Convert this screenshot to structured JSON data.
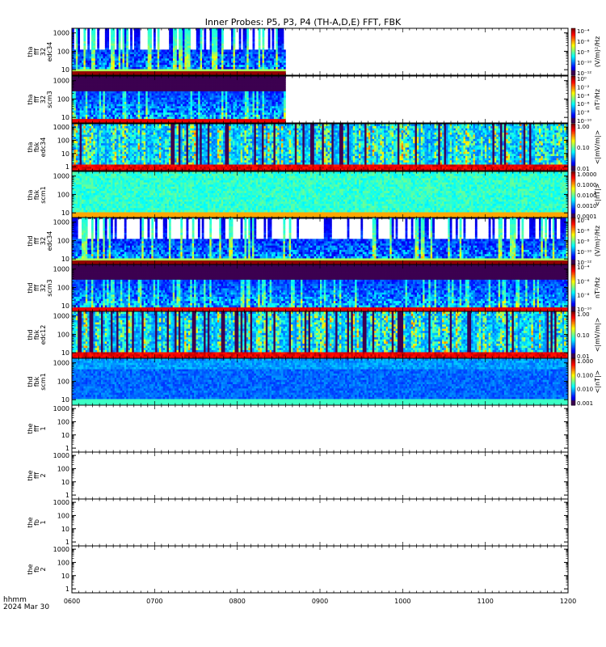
{
  "title": "Inner Probes: P5, P3, P4 (TH-A,D,E) FFT, FBK",
  "footer": {
    "line1": "hhmm",
    "line2": "2024 Mar 30"
  },
  "chart_data": {
    "type": "heatmap",
    "title": "Inner Probes: P5, P3, P4 (TH-A,D,E) FFT, FBK",
    "x_ticks": [
      "0600",
      "0700",
      "0800",
      "0900",
      "1000",
      "1100",
      "1200"
    ],
    "x_range": [
      "06:00",
      "12:00"
    ],
    "y_scale": "log",
    "y_ticks": [
      "1",
      "10",
      "100",
      "1000"
    ],
    "panels": [
      {
        "ylabel": [
          "tha",
          "fff",
          "32",
          "edc34"
        ],
        "y_ticks": [
          "10",
          "100",
          "1000"
        ],
        "cbar_unit": "(V/m)²/Hz",
        "cbar_ticks": [
          "10⁻⁴",
          "10⁻⁶",
          "10⁻⁸",
          "10⁻¹⁰",
          "10⁻¹²"
        ],
        "data_until": "08:35",
        "style": "efield"
      },
      {
        "ylabel": [
          "tha",
          "fff",
          "32",
          "scm3"
        ],
        "y_ticks": [
          "10",
          "100",
          "1000"
        ],
        "cbar_unit": "nT²/Hz",
        "cbar_ticks": [
          "10⁰",
          "10⁻²",
          "10⁻⁴",
          "10⁻⁶",
          "10⁻⁸",
          "10⁻¹⁰"
        ],
        "data_until": "08:35",
        "style": "scm"
      },
      {
        "ylabel": [
          "tha",
          "fbk",
          "edc34"
        ],
        "y_ticks": [
          "1",
          "10",
          "100",
          "1000"
        ],
        "cbar_unit": "<|mV/m|>",
        "cbar_ticks": [
          "1.00",
          "0.10",
          "0.01"
        ],
        "data_until": "12:00",
        "style": "fbk"
      },
      {
        "ylabel": [
          "tha",
          "fbk",
          "scm1"
        ],
        "y_ticks": [
          "10",
          "100",
          "1000"
        ],
        "cbar_unit": "<|nT|>",
        "cbar_ticks": [
          "1.0000",
          "0.1000",
          "0.0100",
          "0.0010",
          "0.0001"
        ],
        "data_until": "12:00",
        "style": "fbkscm"
      },
      {
        "ylabel": [
          "thd",
          "fff",
          "32",
          "edc34"
        ],
        "y_ticks": [
          "10",
          "100",
          "1000"
        ],
        "cbar_unit": "(V/m)²/Hz",
        "cbar_ticks": [
          "10⁻⁴",
          "10⁻⁶",
          "10⁻⁸",
          "10⁻¹⁰",
          "10⁻¹²"
        ],
        "data_until": "12:00",
        "style": "efield"
      },
      {
        "ylabel": [
          "thd",
          "fff",
          "32",
          "scm3"
        ],
        "y_ticks": [
          "10",
          "100",
          "1000"
        ],
        "cbar_unit": "nT²/Hz",
        "cbar_ticks": [
          "10⁻⁴",
          "10⁻⁶",
          "10⁻⁸",
          "10⁻¹⁰"
        ],
        "data_until": "12:00",
        "style": "scm"
      },
      {
        "ylabel": [
          "thd",
          "fbk",
          "edc12"
        ],
        "y_ticks": [
          "10",
          "100",
          "1000"
        ],
        "cbar_unit": "<|mV/m|>",
        "cbar_ticks": [
          "1.00",
          "0.10",
          "0.01"
        ],
        "data_until": "12:00",
        "style": "fbk"
      },
      {
        "ylabel": [
          "thd",
          "fbk",
          "scm1"
        ],
        "y_ticks": [
          "10",
          "100",
          "1000"
        ],
        "cbar_unit": "<|nT|>",
        "cbar_ticks": [
          "1.000",
          "0.100",
          "0.010",
          "0.001"
        ],
        "data_until": "12:00",
        "style": "fbkscm2"
      },
      {
        "ylabel": [
          "the",
          "fff",
          "1"
        ],
        "y_ticks": [
          "1",
          "10",
          "100",
          "1000"
        ],
        "cbar_unit": "",
        "cbar_ticks": [],
        "data_until": null,
        "style": "empty"
      },
      {
        "ylabel": [
          "the",
          "fff",
          "2"
        ],
        "y_ticks": [
          "1",
          "10",
          "100",
          "1000"
        ],
        "cbar_unit": "",
        "cbar_ticks": [],
        "data_until": null,
        "style": "empty"
      },
      {
        "ylabel": [
          "the",
          "fb",
          "1"
        ],
        "y_ticks": [
          "1",
          "10",
          "100",
          "1000"
        ],
        "cbar_unit": "",
        "cbar_ticks": [],
        "data_until": null,
        "style": "empty"
      },
      {
        "ylabel": [
          "the",
          "fb",
          "2"
        ],
        "y_ticks": [
          "1",
          "10",
          "100",
          "1000"
        ],
        "cbar_unit": "",
        "cbar_ticks": [],
        "data_until": null,
        "style": "empty"
      }
    ]
  }
}
